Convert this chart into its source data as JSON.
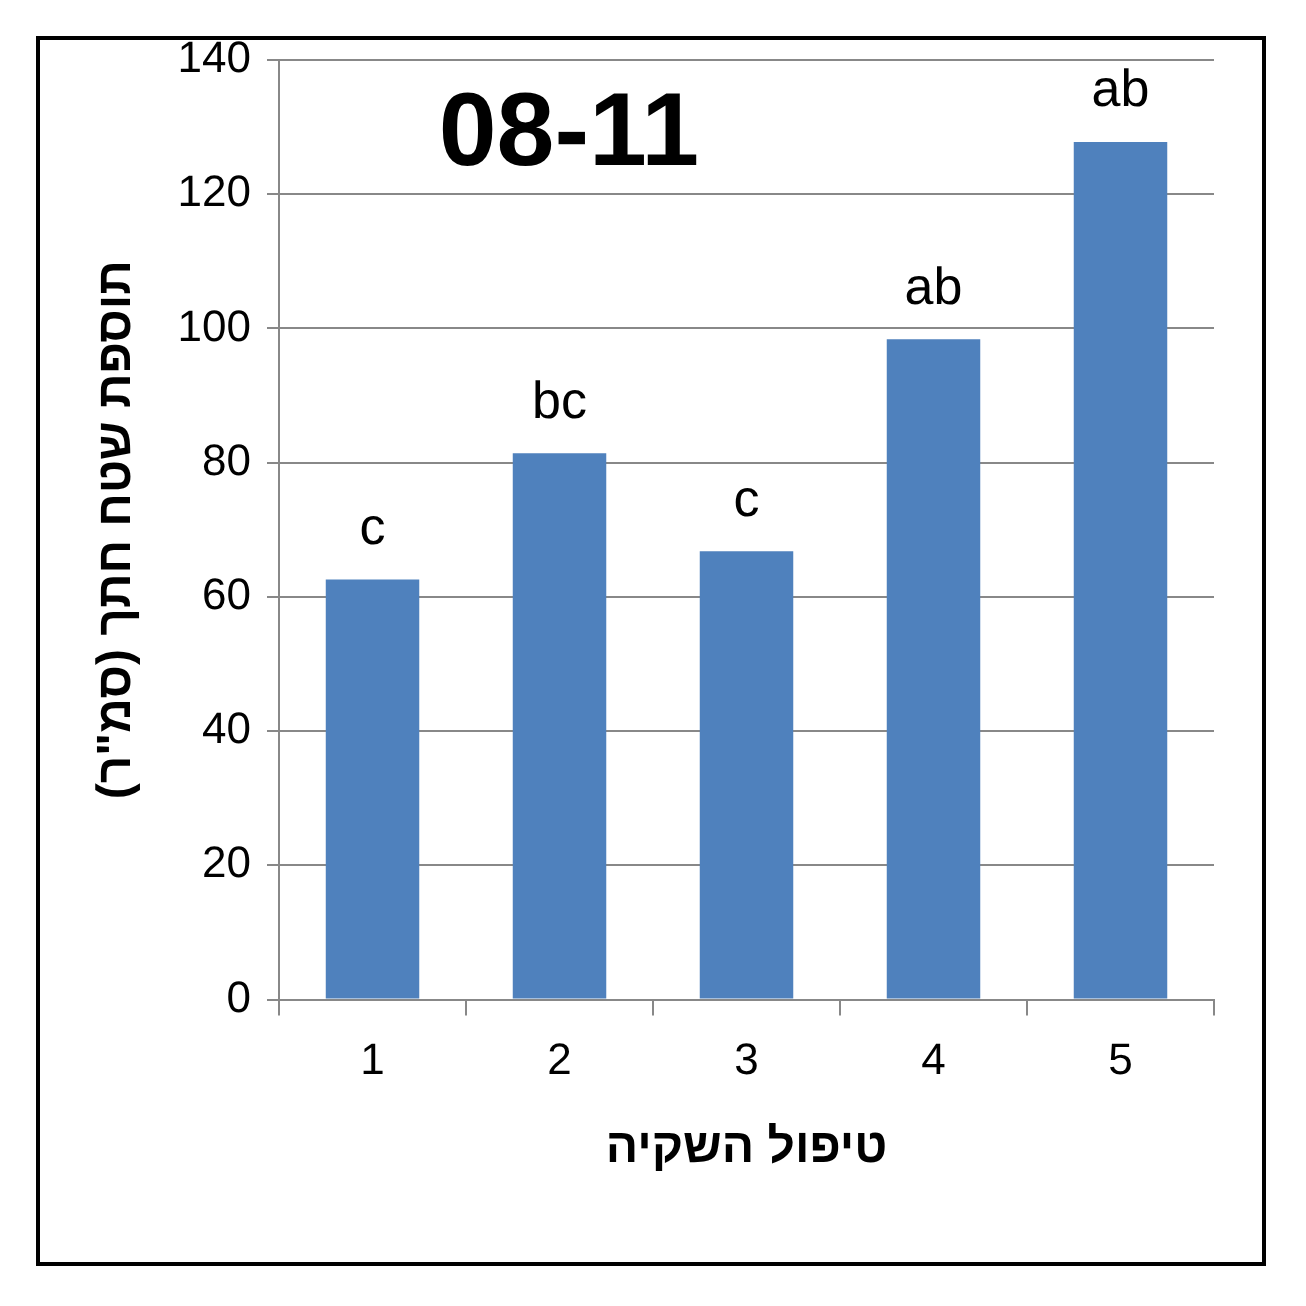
{
  "chart_data": {
    "type": "bar",
    "title": "08-11",
    "xlabel": "טיפול השקיה",
    "ylabel": "תוספת שטח חתך (סמ\"ר)",
    "categories": [
      "1",
      "2",
      "3",
      "4",
      "5"
    ],
    "values": [
      62.6,
      81.4,
      66.8,
      98.4,
      127.8
    ],
    "color": "#4f81bd",
    "ylim": [
      0,
      140
    ],
    "yticks": [
      0,
      20,
      40,
      60,
      80,
      100,
      120,
      140
    ],
    "grid": "y",
    "legend": false,
    "annotations": [
      {
        "text": "c",
        "x": "1",
        "y": 62.6
      },
      {
        "text": "bc",
        "x": "2",
        "y": 81.4
      },
      {
        "text": "c",
        "x": "3",
        "y": 66.8
      },
      {
        "text": "ab",
        "x": "4",
        "y": 98.4
      },
      {
        "text": "ab",
        "x": "5",
        "y": 127.8
      }
    ]
  }
}
